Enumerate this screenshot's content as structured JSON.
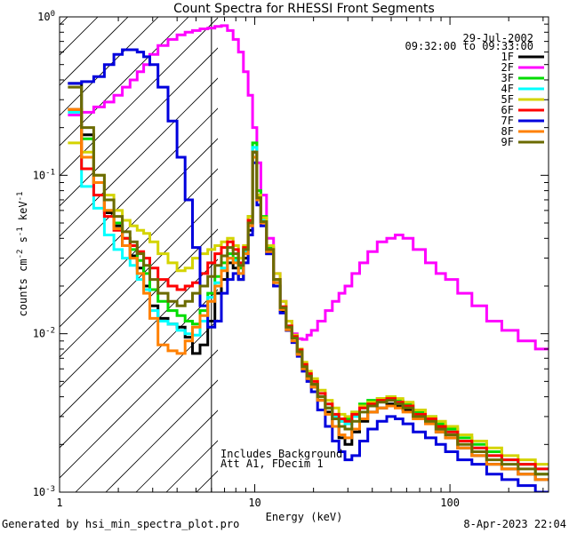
{
  "chart_data": {
    "type": "line",
    "title": "Count Spectra for RHESSI Front Segments",
    "xlabel": "Energy (keV)",
    "ylabel": "counts cm",
    "ylabel_parts": {
      "base": "counts cm",
      "e1": "-2",
      "mid": " s",
      "e2": "-1",
      "mid2": " keV",
      "e3": "-1"
    },
    "xscale": "log",
    "yscale": "log",
    "xlim": [
      1,
      320
    ],
    "ylim": [
      0.001,
      1.0
    ],
    "x_tick_labels": [
      {
        "value": 1,
        "label": "1"
      },
      {
        "value": 10,
        "label": "10"
      },
      {
        "value": 100,
        "label": "100"
      }
    ],
    "y_tick_labels": [
      {
        "value": 1.0,
        "base": "10",
        "exp": "0"
      },
      {
        "value": 0.1,
        "base": "10",
        "exp": "-1"
      },
      {
        "value": 0.01,
        "base": "10",
        "exp": "-2"
      },
      {
        "value": 0.001,
        "base": "10",
        "exp": "-3"
      }
    ],
    "date": "29-Jul-2002",
    "time_range": "09:32:00 to 09:33:00",
    "annotations": [
      "Includes Background",
      "Att A1, FDecim 1"
    ],
    "vertical_line_energy": 6.0,
    "hatched_region": [
      1.0,
      6.0
    ],
    "legend_position": "top-right",
    "series": [
      {
        "name": "1F",
        "color": "#000000",
        "x": [
          1.2,
          1.4,
          1.6,
          1.8,
          2.0,
          2.2,
          2.4,
          2.6,
          2.8,
          3.0,
          3.4,
          3.8,
          4.2,
          4.6,
          5.0,
          5.5,
          6.0,
          6.5,
          7.0,
          7.5,
          8.0,
          8.5,
          9.0,
          9.5,
          10.0,
          10.5,
          11.0,
          12.0,
          13.0,
          14.0,
          15.0,
          16.0,
          17.0,
          18.0,
          19.0,
          20.0,
          22.0,
          24.0,
          26.0,
          28.0,
          30.0,
          33.0,
          36.0,
          40.0,
          45.0,
          50.0,
          55.0,
          60.0,
          70.0,
          80.0,
          90.0,
          100.0,
          120.0,
          140.0,
          170.0,
          200.0,
          250.0,
          300.0
        ],
        "y": [
          0.38,
          0.18,
          0.09,
          0.058,
          0.048,
          0.036,
          0.031,
          0.026,
          0.02,
          0.015,
          0.0125,
          0.0115,
          0.011,
          0.0095,
          0.0075,
          0.0085,
          0.012,
          0.018,
          0.022,
          0.028,
          0.026,
          0.022,
          0.03,
          0.045,
          0.14,
          0.07,
          0.05,
          0.032,
          0.02,
          0.014,
          0.0105,
          0.0095,
          0.0075,
          0.006,
          0.0052,
          0.0046,
          0.0038,
          0.0032,
          0.0026,
          0.0022,
          0.002,
          0.0024,
          0.0028,
          0.0032,
          0.0034,
          0.0036,
          0.0035,
          0.0033,
          0.003,
          0.0028,
          0.0024,
          0.0022,
          0.0019,
          0.0017,
          0.0015,
          0.0014,
          0.0013,
          0.0012
        ]
      },
      {
        "name": "2F",
        "color": "#ff00ff",
        "x": [
          1.2,
          1.4,
          1.6,
          1.8,
          2.0,
          2.2,
          2.4,
          2.6,
          2.8,
          3.0,
          3.4,
          3.8,
          4.2,
          4.6,
          5.0,
          5.5,
          6.0,
          6.5,
          7.0,
          7.5,
          8.0,
          8.5,
          9.0,
          9.5,
          10.0,
          10.5,
          11.0,
          12.0,
          13.0,
          14.0,
          15.0,
          16.0,
          17.0,
          18.0,
          19.0,
          20.0,
          22.0,
          24.0,
          26.0,
          28.0,
          30.0,
          33.0,
          36.0,
          40.0,
          45.0,
          50.0,
          55.0,
          60.0,
          70.0,
          80.0,
          90.0,
          100.0,
          120.0,
          140.0,
          170.0,
          200.0,
          250.0,
          300.0
        ],
        "y": [
          0.24,
          0.25,
          0.27,
          0.29,
          0.32,
          0.36,
          0.4,
          0.45,
          0.5,
          0.58,
          0.66,
          0.72,
          0.77,
          0.8,
          0.82,
          0.84,
          0.85,
          0.87,
          0.88,
          0.82,
          0.72,
          0.6,
          0.45,
          0.32,
          0.2,
          0.12,
          0.075,
          0.04,
          0.024,
          0.016,
          0.012,
          0.01,
          0.0093,
          0.0092,
          0.0098,
          0.0105,
          0.012,
          0.014,
          0.016,
          0.018,
          0.02,
          0.024,
          0.028,
          0.033,
          0.038,
          0.04,
          0.042,
          0.04,
          0.034,
          0.028,
          0.024,
          0.022,
          0.018,
          0.015,
          0.012,
          0.0105,
          0.009,
          0.008
        ]
      },
      {
        "name": "3F",
        "color": "#00dd00",
        "x": [
          1.2,
          1.4,
          1.6,
          1.8,
          2.0,
          2.2,
          2.4,
          2.6,
          2.8,
          3.0,
          3.4,
          3.8,
          4.2,
          4.6,
          5.0,
          5.5,
          6.0,
          6.5,
          7.0,
          7.5,
          8.0,
          8.5,
          9.0,
          9.5,
          10.0,
          10.5,
          11.0,
          12.0,
          13.0,
          14.0,
          15.0,
          16.0,
          17.0,
          18.0,
          19.0,
          20.0,
          22.0,
          24.0,
          26.0,
          28.0,
          30.0,
          33.0,
          36.0,
          40.0,
          45.0,
          50.0,
          55.0,
          60.0,
          70.0,
          80.0,
          90.0,
          100.0,
          120.0,
          140.0,
          170.0,
          200.0,
          250.0,
          300.0
        ],
        "y": [
          0.26,
          0.17,
          0.09,
          0.06,
          0.05,
          0.04,
          0.034,
          0.029,
          0.024,
          0.019,
          0.016,
          0.014,
          0.013,
          0.012,
          0.0115,
          0.014,
          0.018,
          0.023,
          0.028,
          0.032,
          0.03,
          0.026,
          0.034,
          0.055,
          0.16,
          0.08,
          0.055,
          0.035,
          0.022,
          0.0145,
          0.011,
          0.0095,
          0.0078,
          0.0064,
          0.0055,
          0.0048,
          0.004,
          0.0034,
          0.003,
          0.0028,
          0.0029,
          0.0032,
          0.0036,
          0.0038,
          0.0039,
          0.004,
          0.0038,
          0.0036,
          0.0032,
          0.003,
          0.0027,
          0.0025,
          0.0022,
          0.002,
          0.0018,
          0.0016,
          0.0015,
          0.0013
        ]
      },
      {
        "name": "4F",
        "color": "#00ffff",
        "x": [
          1.2,
          1.4,
          1.6,
          1.8,
          2.0,
          2.2,
          2.4,
          2.6,
          2.8,
          3.0,
          3.4,
          3.8,
          4.2,
          4.6,
          5.0,
          5.5,
          6.0,
          6.5,
          7.0,
          7.5,
          8.0,
          8.5,
          9.0,
          9.5,
          10.0,
          10.5,
          11.0,
          12.0,
          13.0,
          14.0,
          15.0,
          16.0,
          17.0,
          18.0,
          19.0,
          20.0,
          22.0,
          24.0,
          26.0,
          28.0,
          30.0,
          33.0,
          36.0,
          40.0,
          45.0,
          50.0,
          55.0,
          60.0,
          70.0,
          80.0,
          90.0,
          100.0,
          120.0,
          140.0,
          170.0,
          200.0,
          250.0,
          300.0
        ],
        "y": [
          0.25,
          0.085,
          0.062,
          0.042,
          0.034,
          0.03,
          0.027,
          0.022,
          0.019,
          0.014,
          0.012,
          0.0115,
          0.0105,
          0.01,
          0.0098,
          0.012,
          0.017,
          0.021,
          0.026,
          0.03,
          0.029,
          0.024,
          0.033,
          0.05,
          0.15,
          0.075,
          0.052,
          0.033,
          0.021,
          0.0145,
          0.011,
          0.0095,
          0.0078,
          0.0062,
          0.0054,
          0.0048,
          0.0042,
          0.0036,
          0.003,
          0.0028,
          0.0027,
          0.003,
          0.0034,
          0.0036,
          0.0038,
          0.0039,
          0.0037,
          0.0035,
          0.0031,
          0.0028,
          0.0026,
          0.0024,
          0.0021,
          0.0019,
          0.0017,
          0.0016,
          0.0015,
          0.0014
        ]
      },
      {
        "name": "5F",
        "color": "#d4d400",
        "x": [
          1.2,
          1.4,
          1.6,
          1.8,
          2.0,
          2.2,
          2.4,
          2.6,
          2.8,
          3.0,
          3.4,
          3.8,
          4.2,
          4.6,
          5.0,
          5.5,
          6.0,
          6.5,
          7.0,
          7.5,
          8.0,
          8.5,
          9.0,
          9.5,
          10.0,
          10.5,
          11.0,
          12.0,
          13.0,
          14.0,
          15.0,
          16.0,
          17.0,
          18.0,
          19.0,
          20.0,
          22.0,
          24.0,
          26.0,
          28.0,
          30.0,
          33.0,
          36.0,
          40.0,
          45.0,
          50.0,
          55.0,
          60.0,
          70.0,
          80.0,
          90.0,
          100.0,
          120.0,
          140.0,
          170.0,
          200.0,
          250.0,
          300.0
        ],
        "y": [
          0.16,
          0.14,
          0.1,
          0.075,
          0.06,
          0.052,
          0.048,
          0.045,
          0.043,
          0.038,
          0.032,
          0.028,
          0.025,
          0.026,
          0.03,
          0.032,
          0.034,
          0.036,
          0.038,
          0.04,
          0.036,
          0.03,
          0.036,
          0.055,
          0.13,
          0.075,
          0.054,
          0.036,
          0.024,
          0.016,
          0.012,
          0.0098,
          0.008,
          0.0066,
          0.0058,
          0.0052,
          0.0044,
          0.0038,
          0.0034,
          0.0031,
          0.003,
          0.0032,
          0.0035,
          0.0037,
          0.0039,
          0.004,
          0.0039,
          0.0037,
          0.0033,
          0.003,
          0.0028,
          0.0026,
          0.0023,
          0.0021,
          0.0019,
          0.0017,
          0.0016,
          0.0015
        ]
      },
      {
        "name": "6F",
        "color": "#ff0000",
        "x": [
          1.2,
          1.4,
          1.6,
          1.8,
          2.0,
          2.2,
          2.4,
          2.6,
          2.8,
          3.0,
          3.4,
          3.8,
          4.2,
          4.6,
          5.0,
          5.5,
          6.0,
          6.5,
          7.0,
          7.5,
          8.0,
          8.5,
          9.0,
          9.5,
          10.0,
          10.5,
          11.0,
          12.0,
          13.0,
          14.0,
          15.0,
          16.0,
          17.0,
          18.0,
          19.0,
          20.0,
          22.0,
          24.0,
          26.0,
          28.0,
          30.0,
          33.0,
          36.0,
          40.0,
          45.0,
          50.0,
          55.0,
          60.0,
          70.0,
          80.0,
          90.0,
          100.0,
          120.0,
          140.0,
          170.0,
          200.0,
          250.0,
          300.0
        ],
        "y": [
          0.26,
          0.11,
          0.075,
          0.055,
          0.045,
          0.04,
          0.036,
          0.033,
          0.03,
          0.026,
          0.022,
          0.02,
          0.019,
          0.02,
          0.021,
          0.024,
          0.028,
          0.032,
          0.035,
          0.038,
          0.034,
          0.028,
          0.035,
          0.052,
          0.14,
          0.072,
          0.05,
          0.034,
          0.022,
          0.0148,
          0.0112,
          0.0096,
          0.0079,
          0.0064,
          0.0056,
          0.005,
          0.0042,
          0.0036,
          0.0031,
          0.0029,
          0.0028,
          0.0031,
          0.0034,
          0.0036,
          0.0038,
          0.0039,
          0.0037,
          0.0035,
          0.0031,
          0.0029,
          0.0026,
          0.0024,
          0.0021,
          0.0019,
          0.0017,
          0.0016,
          0.0015,
          0.0014
        ]
      },
      {
        "name": "7F",
        "color": "#0000dd",
        "x": [
          1.2,
          1.4,
          1.6,
          1.8,
          2.0,
          2.2,
          2.4,
          2.6,
          2.8,
          3.0,
          3.4,
          3.8,
          4.2,
          4.6,
          5.0,
          5.5,
          6.0,
          6.5,
          7.0,
          7.5,
          8.0,
          8.5,
          9.0,
          9.5,
          10.0,
          10.5,
          11.0,
          12.0,
          13.0,
          14.0,
          15.0,
          16.0,
          17.0,
          18.0,
          19.0,
          20.0,
          22.0,
          24.0,
          26.0,
          28.0,
          30.0,
          33.0,
          36.0,
          40.0,
          45.0,
          50.0,
          55.0,
          60.0,
          70.0,
          80.0,
          90.0,
          100.0,
          120.0,
          140.0,
          170.0,
          200.0,
          250.0,
          300.0
        ],
        "y": [
          0.38,
          0.39,
          0.42,
          0.5,
          0.58,
          0.62,
          0.62,
          0.6,
          0.56,
          0.5,
          0.36,
          0.22,
          0.13,
          0.07,
          0.035,
          0.015,
          0.011,
          0.012,
          0.018,
          0.022,
          0.024,
          0.022,
          0.028,
          0.042,
          0.12,
          0.065,
          0.048,
          0.032,
          0.02,
          0.0135,
          0.0105,
          0.0088,
          0.0072,
          0.0058,
          0.005,
          0.0043,
          0.0033,
          0.0026,
          0.0021,
          0.0018,
          0.0016,
          0.0017,
          0.0021,
          0.0025,
          0.0028,
          0.003,
          0.0029,
          0.0027,
          0.0024,
          0.0022,
          0.002,
          0.0018,
          0.0016,
          0.0015,
          0.0013,
          0.0012,
          0.0011,
          0.001
        ]
      },
      {
        "name": "8F",
        "color": "#ff8000",
        "x": [
          1.2,
          1.4,
          1.6,
          1.8,
          2.0,
          2.2,
          2.4,
          2.6,
          2.8,
          3.0,
          3.4,
          3.8,
          4.2,
          4.6,
          5.0,
          5.5,
          6.0,
          6.5,
          7.0,
          7.5,
          8.0,
          8.5,
          9.0,
          9.5,
          10.0,
          10.5,
          11.0,
          12.0,
          13.0,
          14.0,
          15.0,
          16.0,
          17.0,
          18.0,
          19.0,
          20.0,
          22.0,
          24.0,
          26.0,
          28.0,
          30.0,
          33.0,
          36.0,
          40.0,
          45.0,
          50.0,
          55.0,
          60.0,
          70.0,
          80.0,
          90.0,
          100.0,
          120.0,
          140.0,
          170.0,
          200.0,
          250.0,
          300.0
        ],
        "y": [
          0.26,
          0.13,
          0.09,
          0.06,
          0.046,
          0.036,
          0.03,
          0.024,
          0.018,
          0.0125,
          0.0085,
          0.0078,
          0.0075,
          0.009,
          0.011,
          0.013,
          0.016,
          0.02,
          0.025,
          0.03,
          0.028,
          0.024,
          0.032,
          0.048,
          0.13,
          0.07,
          0.05,
          0.033,
          0.021,
          0.0142,
          0.0106,
          0.009,
          0.0074,
          0.006,
          0.0052,
          0.0046,
          0.0038,
          0.0031,
          0.0026,
          0.0023,
          0.0022,
          0.0025,
          0.0029,
          0.0032,
          0.0034,
          0.0035,
          0.0034,
          0.0032,
          0.0029,
          0.0027,
          0.0024,
          0.0022,
          0.0019,
          0.0017,
          0.0015,
          0.0014,
          0.0013,
          0.0012
        ]
      },
      {
        "name": "9F",
        "color": "#6b6b00",
        "x": [
          1.2,
          1.4,
          1.6,
          1.8,
          2.0,
          2.2,
          2.4,
          2.6,
          2.8,
          3.0,
          3.4,
          3.8,
          4.2,
          4.6,
          5.0,
          5.5,
          6.0,
          6.5,
          7.0,
          7.5,
          8.0,
          8.5,
          9.0,
          9.5,
          10.0,
          10.5,
          11.0,
          12.0,
          13.0,
          14.0,
          15.0,
          16.0,
          17.0,
          18.0,
          19.0,
          20.0,
          22.0,
          24.0,
          26.0,
          28.0,
          30.0,
          33.0,
          36.0,
          40.0,
          45.0,
          50.0,
          55.0,
          60.0,
          70.0,
          80.0,
          90.0,
          100.0,
          120.0,
          140.0,
          170.0,
          200.0,
          250.0,
          300.0
        ],
        "y": [
          0.36,
          0.2,
          0.1,
          0.07,
          0.055,
          0.044,
          0.038,
          0.032,
          0.027,
          0.022,
          0.018,
          0.016,
          0.015,
          0.016,
          0.018,
          0.02,
          0.023,
          0.027,
          0.031,
          0.035,
          0.032,
          0.027,
          0.034,
          0.05,
          0.14,
          0.072,
          0.051,
          0.034,
          0.022,
          0.0146,
          0.011,
          0.0094,
          0.0077,
          0.0062,
          0.0054,
          0.0048,
          0.004,
          0.0034,
          0.0029,
          0.0026,
          0.0025,
          0.0028,
          0.0032,
          0.0035,
          0.0037,
          0.0038,
          0.0036,
          0.0034,
          0.003,
          0.0028,
          0.0025,
          0.0023,
          0.002,
          0.0018,
          0.0016,
          0.0015,
          0.0014,
          0.0013
        ]
      }
    ]
  },
  "footer": {
    "left": "Generated by hsi_min_spectra_plot.pro",
    "right": "8-Apr-2023 22:04"
  }
}
